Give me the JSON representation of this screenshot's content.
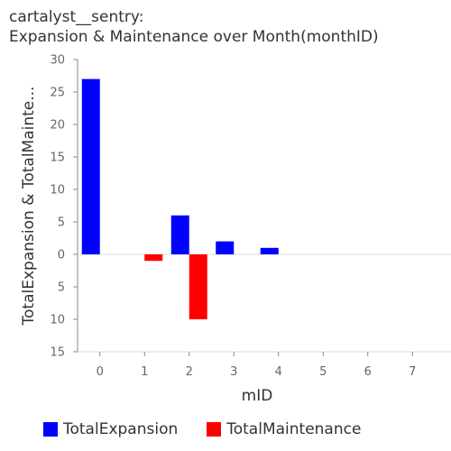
{
  "chart_data": {
    "type": "bar",
    "title_line1": "cartalyst__sentry:",
    "title_line2": "Expansion & Maintenance over Month(monthID)",
    "xlabel": "mID",
    "ylabel": "TotalExpansion & TotalMainte...",
    "categories": [
      "0",
      "1",
      "2",
      "3",
      "4",
      "5",
      "6",
      "7"
    ],
    "yticks_up": [
      30,
      25,
      20,
      15,
      10,
      5,
      0
    ],
    "yticks_down": [
      5,
      10,
      15
    ],
    "series": [
      {
        "name": "TotalExpansion",
        "color": "#0000ff",
        "direction": "up",
        "values": [
          27,
          0,
          6,
          2,
          1,
          0,
          0,
          0
        ]
      },
      {
        "name": "TotalMaintenance",
        "color": "#ff0000",
        "direction": "down",
        "values": [
          0,
          1,
          10,
          0,
          0,
          0,
          0,
          0
        ]
      }
    ],
    "ylim": [
      -15,
      30
    ],
    "grid": false,
    "legend": "bottom"
  }
}
